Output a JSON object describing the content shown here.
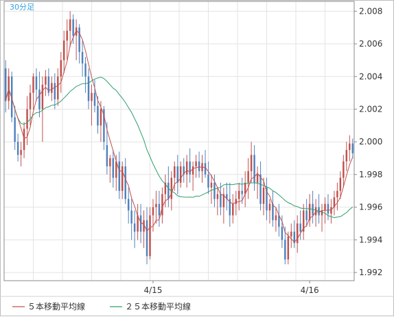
{
  "period_label": "30分足",
  "legend": [
    {
      "label": "５本移動平均線",
      "color": "#c0504d"
    },
    {
      "label": "２５本移動平均線",
      "color": "#2e9e6b"
    }
  ],
  "colors": {
    "up": "#c0504d",
    "down": "#4f81bd",
    "ma5": "#c0504d",
    "ma25": "#2e9e6b",
    "grid": "#e3e3e3",
    "frame": "#888888",
    "period_label": "#33a0e0"
  },
  "chart_data": {
    "type": "candlestick",
    "title": "30分足",
    "xlabel": "",
    "ylabel": "",
    "ylim": [
      1.9915,
      2.0086
    ],
    "yticks": [
      "1.992",
      "1.994",
      "1.996",
      "1.998",
      "2.000",
      "2.002",
      "2.004",
      "2.006",
      "2.008"
    ],
    "xticks": [
      {
        "label": "4/15",
        "index": 48
      },
      {
        "label": "4/16",
        "index": 99
      }
    ],
    "grid": true,
    "legend_position": "bottom",
    "candles": [
      [
        2.0045,
        2.005,
        2.0018,
        2.0025
      ],
      [
        2.0025,
        2.0045,
        2.002,
        2.004
      ],
      [
        2.004,
        2.0043,
        2.0012,
        2.0015
      ],
      [
        2.0015,
        2.0022,
        1.9995,
        2.0
      ],
      [
        2.0,
        2.0005,
        1.9988,
        1.9992
      ],
      [
        1.9992,
        2.0,
        1.9985,
        1.9995
      ],
      [
        1.9995,
        2.0012,
        1.999,
        2.0008
      ],
      [
        2.0008,
        2.0028,
        1.9998,
        2.002
      ],
      [
        2.002,
        2.0035,
        2.001,
        2.003
      ],
      [
        2.003,
        2.0042,
        2.002,
        2.004
      ],
      [
        2.004,
        2.0045,
        2.0025,
        2.0032
      ],
      [
        2.0032,
        2.0043,
        2.0015,
        2.002
      ],
      [
        2.002,
        2.004,
        2.0,
        2.0035
      ],
      [
        2.0035,
        2.0044,
        2.0028,
        2.004
      ],
      [
        2.004,
        2.0045,
        2.0028,
        2.003
      ],
      [
        2.003,
        2.004,
        2.0025,
        2.0036
      ],
      [
        2.0036,
        2.0042,
        2.002,
        2.0026
      ],
      [
        2.0026,
        2.0045,
        2.0022,
        2.004
      ],
      [
        2.004,
        2.0055,
        2.003,
        2.005
      ],
      [
        2.005,
        2.0068,
        2.0042,
        2.0062
      ],
      [
        2.0062,
        2.0075,
        2.005,
        2.0068
      ],
      [
        2.0068,
        2.008,
        2.0058,
        2.0075
      ],
      [
        2.0075,
        2.0078,
        2.006,
        2.0065
      ],
      [
        2.0065,
        2.0075,
        2.005,
        2.007
      ],
      [
        2.007,
        2.0072,
        2.0048,
        2.0055
      ],
      [
        2.0055,
        2.0062,
        2.004,
        2.0048
      ],
      [
        2.0048,
        2.0052,
        2.003,
        2.004
      ],
      [
        2.004,
        2.0045,
        2.002,
        2.0025
      ],
      [
        2.0025,
        2.0035,
        2.001,
        2.003
      ],
      [
        2.003,
        2.0038,
        2.0018,
        2.0022
      ],
      [
        2.0022,
        2.0028,
        2.0005,
        2.001
      ],
      [
        2.001,
        2.0025,
        2.0,
        2.002
      ],
      [
        2.002,
        2.0022,
        1.9995,
        2.0
      ],
      [
        1.9998,
        2.0012,
        1.998,
        1.9985
      ],
      [
        1.9985,
        1.9992,
        1.9975,
        1.999
      ],
      [
        1.999,
        1.9995,
        1.9972,
        1.9978
      ],
      [
        1.9978,
        1.9992,
        1.997,
        1.9988
      ],
      [
        1.9988,
        1.9994,
        1.9965,
        1.997
      ],
      [
        1.997,
        1.9988,
        1.9965,
        1.9985
      ],
      [
        1.9985,
        1.999,
        1.9962,
        1.9965
      ],
      [
        1.9965,
        1.9972,
        1.995,
        1.9958
      ],
      [
        1.9958,
        1.9965,
        1.994,
        1.995
      ],
      [
        1.995,
        1.9958,
        1.9935,
        1.9945
      ],
      [
        1.9945,
        1.9962,
        1.994,
        1.9955
      ],
      [
        1.9955,
        1.9962,
        1.9938,
        1.9945
      ],
      [
        1.9945,
        1.9958,
        1.9935,
        1.9952
      ],
      [
        1.9952,
        1.996,
        1.9925,
        1.993
      ],
      [
        1.993,
        1.996,
        1.9928,
        1.9955
      ],
      [
        1.9955,
        1.9965,
        1.9945,
        1.996
      ],
      [
        1.996,
        1.997,
        1.995,
        1.9962
      ],
      [
        1.9962,
        1.997,
        1.9948,
        1.9955
      ],
      [
        1.9955,
        1.9972,
        1.995,
        1.9968
      ],
      [
        1.9968,
        1.998,
        1.996,
        1.9975
      ],
      [
        1.9975,
        1.9985,
        1.996,
        1.9965
      ],
      [
        1.9965,
        1.9982,
        1.9958,
        1.9978
      ],
      [
        1.9978,
        1.9988,
        1.997,
        1.9985
      ],
      [
        1.9985,
        1.9992,
        1.9968,
        1.9975
      ],
      [
        1.9975,
        1.9988,
        1.9972,
        1.9985
      ],
      [
        1.9985,
        1.999,
        1.9975,
        1.998
      ],
      [
        1.998,
        1.9992,
        1.9972,
        1.9988
      ],
      [
        1.9988,
        1.9996,
        1.9975,
        1.998
      ],
      [
        1.998,
        1.9988,
        1.997,
        1.9985
      ],
      [
        1.9985,
        1.9992,
        1.9978,
        1.9988
      ],
      [
        1.9988,
        1.9994,
        1.9978,
        1.9982
      ],
      [
        1.9982,
        1.9992,
        1.9975,
        1.9987
      ],
      [
        1.9987,
        1.9995,
        1.9978,
        1.998
      ],
      [
        1.998,
        1.9988,
        1.9968,
        1.9972
      ],
      [
        1.9972,
        1.998,
        1.9962,
        1.9975
      ],
      [
        1.9975,
        1.998,
        1.996,
        1.9965
      ],
      [
        1.9965,
        1.9972,
        1.9955,
        1.9968
      ],
      [
        1.9968,
        1.9975,
        1.9955,
        1.996
      ],
      [
        1.996,
        1.9972,
        1.995,
        1.9968
      ],
      [
        1.9968,
        1.9975,
        1.9958,
        1.9965
      ],
      [
        1.9965,
        1.9975,
        1.9948,
        1.9955
      ],
      [
        1.9955,
        1.9968,
        1.995,
        1.9962
      ],
      [
        1.9962,
        1.997,
        1.9955,
        1.9965
      ],
      [
        1.9965,
        1.9975,
        1.9958,
        1.997
      ],
      [
        1.997,
        1.9978,
        1.9962,
        1.9968
      ],
      [
        1.9968,
        1.9982,
        1.996,
        1.9975
      ],
      [
        1.9975,
        1.999,
        1.9965,
        1.9982
      ],
      [
        1.9982,
        2.0,
        1.9975,
        1.9992
      ],
      [
        1.9992,
        1.9998,
        1.997,
        1.9975
      ],
      [
        1.9975,
        1.9985,
        1.9965,
        1.998
      ],
      [
        1.998,
        1.9988,
        1.9958,
        1.9962
      ],
      [
        1.9962,
        1.9978,
        1.9955,
        1.9972
      ],
      [
        1.9972,
        1.9978,
        1.9952,
        1.9958
      ],
      [
        1.9958,
        1.9965,
        1.995,
        1.9962
      ],
      [
        1.9962,
        1.997,
        1.9948,
        1.9952
      ],
      [
        1.9952,
        1.996,
        1.9945,
        1.9955
      ],
      [
        1.9955,
        1.9962,
        1.9942,
        1.9948
      ],
      [
        1.9948,
        1.9955,
        1.9935,
        1.994
      ],
      [
        1.994,
        1.9948,
        1.9925,
        1.9928
      ],
      [
        1.9928,
        1.9945,
        1.9925,
        1.9942
      ],
      [
        1.9942,
        1.995,
        1.9935,
        1.9945
      ],
      [
        1.9945,
        1.9952,
        1.9935,
        1.9938
      ],
      [
        1.9938,
        1.9955,
        1.9932,
        1.995
      ],
      [
        1.995,
        1.9958,
        1.994,
        1.9945
      ],
      [
        1.9945,
        1.9962,
        1.994,
        1.9958
      ],
      [
        1.9958,
        1.9965,
        1.9948,
        1.9952
      ],
      [
        1.9952,
        1.9968,
        1.9948,
        1.9962
      ],
      [
        1.9962,
        1.997,
        1.995,
        1.9955
      ],
      [
        1.9955,
        1.9965,
        1.9948,
        1.996
      ],
      [
        1.996,
        1.9968,
        1.995,
        1.9955
      ],
      [
        1.9955,
        1.9962,
        1.9945,
        1.9958
      ],
      [
        1.9958,
        1.9966,
        1.995,
        1.9962
      ],
      [
        1.9962,
        1.9968,
        1.9952,
        1.9956
      ],
      [
        1.9956,
        1.9965,
        1.995,
        1.996
      ],
      [
        1.996,
        1.997,
        1.9955,
        1.9966
      ],
      [
        1.9966,
        1.9975,
        1.9958,
        1.997
      ],
      [
        1.997,
        1.9982,
        1.9965,
        1.9978
      ],
      [
        1.9978,
        1.9992,
        1.9972,
        1.9988
      ],
      [
        1.9988,
        2.0,
        1.9982,
        1.9995
      ],
      [
        1.9995,
        2.0004,
        1.9988,
        1.9999
      ],
      [
        1.9999,
        2.0002,
        1.999,
        1.9993
      ]
    ],
    "ma5_color": "#c0504d",
    "ma25_color": "#2e9e6b"
  }
}
